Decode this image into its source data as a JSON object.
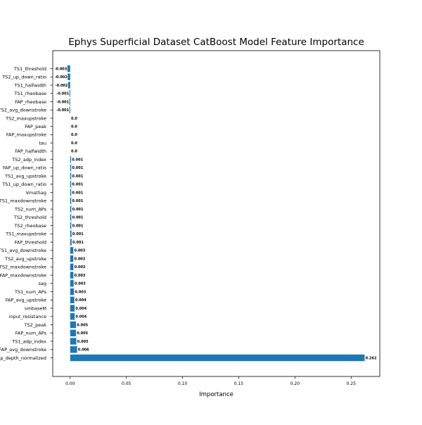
{
  "chart_data": {
    "type": "bar",
    "orientation": "horizontal",
    "title": "Ephys Superficial Dataset CatBoost Model Feature Importance",
    "xlabel": "Importance",
    "ylabel": "",
    "xlim": [
      -0.0155,
      0.2755
    ],
    "xticks": [
      0.0,
      0.05,
      0.1,
      0.15,
      0.2,
      0.25
    ],
    "xtick_labels": [
      "0.00",
      "0.05",
      "0.10",
      "0.15",
      "0.20",
      "0.25"
    ],
    "grid": false,
    "bar_color": "#1f77b4",
    "categories": [
      "TS1_threshold",
      "TS2_up_down_ratio",
      "TS1_halfwidth",
      "TS1_rheobase",
      "FAP_rheobase",
      "TS2_avg_downstroke",
      "TS2_maxupstroke",
      "FAP_peak",
      "FAP_maxupstroke",
      "tau",
      "FAP_halfwidth",
      "TS2_adp_index",
      "FAP_up_down_ratio",
      "TS1_avg_upstroke",
      "TS1_up_down_ratio",
      "VmatSag",
      "TS1_maxdownstroke",
      "TS2_num_APs",
      "TS2_threshold",
      "TS2_rheobase",
      "TS1_maxupstroke",
      "FAP_threshold",
      "TS1_avg_downstroke",
      "TS2_avg_upstroke",
      "TS2_maxdownstroke",
      "FAP_maxdownstroke",
      "sag",
      "TS1_num_APs",
      "FAP_avg_upstroke",
      "vmbaseM",
      "input_resistance",
      "TS2_peak",
      "FAP_num_APs",
      "TS1_adp_index",
      "FAP_avg_downstroke",
      "sweep_depth_normalized"
    ],
    "values": [
      -0.0025,
      -0.0022,
      -0.0018,
      -0.0007,
      -0.0007,
      -0.0007,
      0.0,
      0.0,
      0.0,
      0.0,
      0.0,
      0.0008,
      0.0009,
      0.0009,
      0.0009,
      0.0009,
      0.0009,
      0.001,
      0.001,
      0.001,
      0.0012,
      0.0013,
      0.0028,
      0.0028,
      0.0029,
      0.0029,
      0.0031,
      0.0034,
      0.0037,
      0.004,
      0.004,
      0.0052,
      0.0052,
      0.0055,
      0.0062,
      0.262
    ],
    "data_labels": [
      "-0.003",
      "-0.002",
      "-0.002",
      "-0.001",
      "-0.001",
      "-0.001",
      "0.0",
      "0.0",
      "0.0",
      "0.0",
      "0.0",
      "0.001",
      "0.001",
      "0.001",
      "0.001",
      "0.001",
      "0.001",
      "0.001",
      "0.001",
      "0.001",
      "0.001",
      "0.001",
      "0.003",
      "0.003",
      "0.003",
      "0.003",
      "0.003",
      "0.003",
      "0.004",
      "0.004",
      "0.004",
      "0.005",
      "0.005",
      "0.005",
      "0.006",
      "0.262"
    ]
  }
}
